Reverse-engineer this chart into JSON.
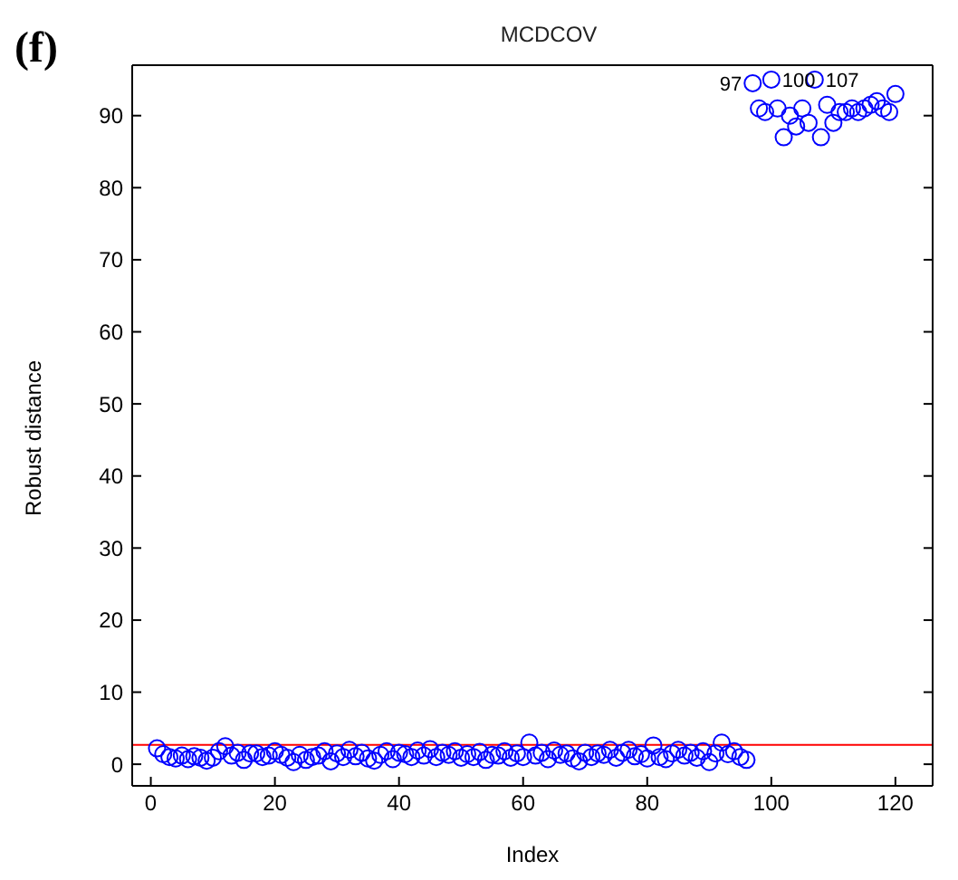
{
  "chart_data": {
    "type": "scatter",
    "title": "MCDCOV",
    "xlabel": "Index",
    "ylabel": "Robust distance",
    "x": [
      1,
      2,
      3,
      4,
      5,
      6,
      7,
      8,
      9,
      10,
      11,
      12,
      13,
      14,
      15,
      16,
      17,
      18,
      19,
      20,
      21,
      22,
      23,
      24,
      25,
      26,
      27,
      28,
      29,
      30,
      31,
      32,
      33,
      34,
      35,
      36,
      37,
      38,
      39,
      40,
      41,
      42,
      43,
      44,
      45,
      46,
      47,
      48,
      49,
      50,
      51,
      52,
      53,
      54,
      55,
      56,
      57,
      58,
      59,
      60,
      61,
      62,
      63,
      64,
      65,
      66,
      67,
      68,
      69,
      70,
      71,
      72,
      73,
      74,
      75,
      76,
      77,
      78,
      79,
      80,
      81,
      82,
      83,
      84,
      85,
      86,
      87,
      88,
      89,
      90,
      91,
      92,
      93,
      94,
      95,
      96,
      97,
      98,
      99,
      100,
      101,
      102,
      103,
      104,
      105,
      106,
      107,
      108,
      109,
      110,
      111,
      112,
      113,
      114,
      115,
      116,
      117,
      118,
      119,
      120
    ],
    "series": [
      {
        "color": "#0000ff",
        "values": [
          2.2,
          1.4,
          1.0,
          0.8,
          1.2,
          0.7,
          1.1,
          0.9,
          0.5,
          0.9,
          1.8,
          2.5,
          1.2,
          1.6,
          0.6,
          1.5,
          1.5,
          1.0,
          1.2,
          1.8,
          1.3,
          0.9,
          0.3,
          1.3,
          0.6,
          1.0,
          1.2,
          1.8,
          0.4,
          1.5,
          1.0,
          2.0,
          1.1,
          1.6,
          0.8,
          0.5,
          1.3,
          1.8,
          0.7,
          1.6,
          1.4,
          1.0,
          1.9,
          1.2,
          2.1,
          1.0,
          1.6,
          1.3,
          1.8,
          0.9,
          1.4,
          1.0,
          1.7,
          0.6,
          1.3,
          1.2,
          1.8,
          0.9,
          1.5,
          1.0,
          3.0,
          1.2,
          1.6,
          0.7,
          1.9,
          1.3,
          1.5,
          0.8,
          0.4,
          1.6,
          1.0,
          1.5,
          1.3,
          2.0,
          0.9,
          1.6,
          2.0,
          1.1,
          1.4,
          0.8,
          2.6,
          1.0,
          0.7,
          1.5,
          2.0,
          1.2,
          1.6,
          0.9,
          1.8,
          0.3,
          1.5,
          3.0,
          1.4,
          1.8,
          1.0,
          0.6,
          94.5,
          91,
          90.5,
          95,
          91,
          87,
          90,
          88.5,
          91,
          89,
          95,
          87,
          91.5,
          89,
          90.5,
          90.5,
          91,
          90.5,
          91,
          91.5,
          92,
          91,
          90.5,
          93
        ]
      }
    ],
    "xlim": [
      -3,
      126
    ],
    "ylim": [
      -3,
      97
    ],
    "xticks": [
      0,
      20,
      40,
      60,
      80,
      100,
      120
    ],
    "yticks": [
      0,
      10,
      20,
      30,
      40,
      50,
      60,
      70,
      80,
      90
    ],
    "marker": "circle",
    "legend": false,
    "ref_lines": [
      {
        "axis": "y",
        "value": 2.7,
        "color": "#ff0000"
      }
    ],
    "annotations": [
      "(f)",
      {
        "text": "97",
        "x": 97,
        "y": 94.5
      },
      {
        "text": "100",
        "x": 100,
        "y": 95
      },
      {
        "text": "107",
        "x": 107,
        "y": 95
      }
    ]
  }
}
